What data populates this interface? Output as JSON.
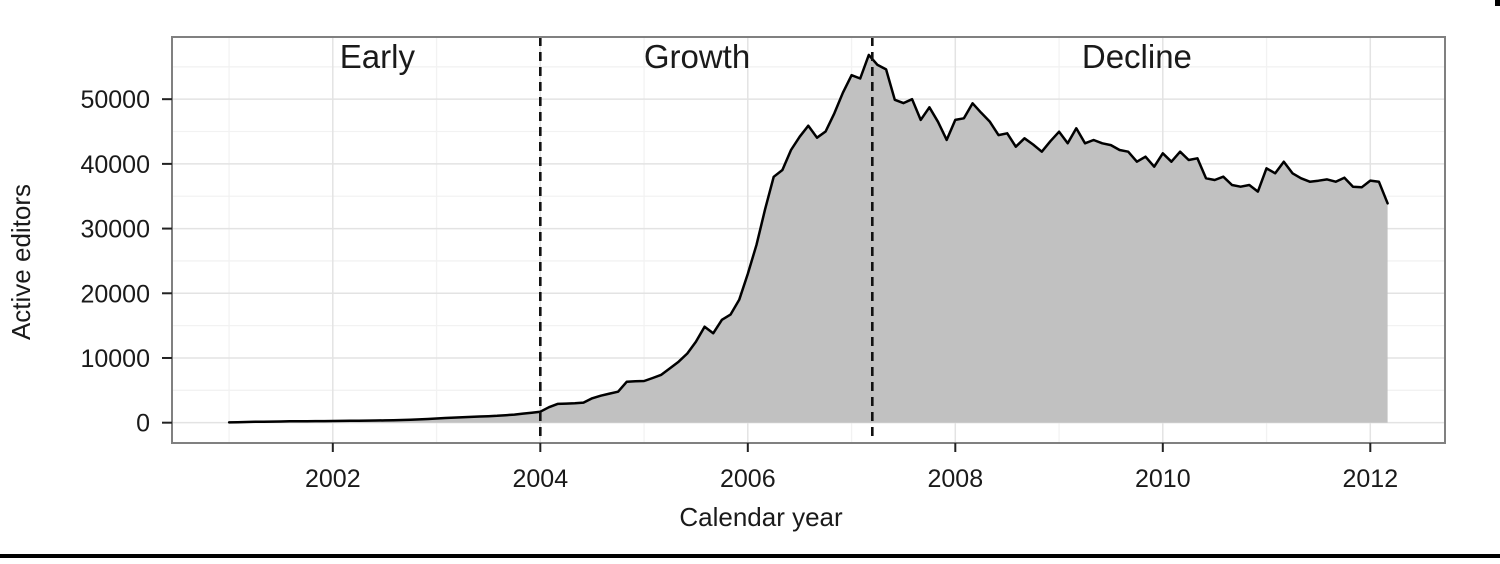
{
  "chart_data": {
    "type": "area",
    "title": "",
    "xlabel": "Calendar year",
    "ylabel": "Active editors",
    "x_ticks": [
      2002,
      2004,
      2006,
      2008,
      2010,
      2012
    ],
    "x_minor_ticks": [
      2001,
      2003,
      2005,
      2007,
      2009,
      2011
    ],
    "y_ticks": [
      0,
      10000,
      20000,
      30000,
      40000,
      50000
    ],
    "y_minor_ticks": [
      5000,
      15000,
      25000,
      35000,
      45000,
      55000
    ],
    "xlim": [
      2000.45,
      2012.72
    ],
    "ylim": [
      -3140,
      59610
    ],
    "grid": "major+minor light gray on white, full gray panel border",
    "legend": "none",
    "annotations": [
      {
        "label": "Early",
        "x": 2002.43
      },
      {
        "label": "Growth",
        "x": 2005.51
      },
      {
        "label": "Decline",
        "x": 2009.75
      }
    ],
    "phase_dividers_x": [
      2004.0,
      2007.2
    ],
    "colors": {
      "area_fill": "#c1c1c1",
      "line": "#000000",
      "dashed_divider": "#111111",
      "panel_border": "#808080",
      "grid_major": "#e3e3e3",
      "grid_minor": "#f2f2f2",
      "bottom_rule": "#000000"
    },
    "series": [
      {
        "name": "Active editors",
        "x_unit": "decimal year, monthly points Jan 2001 - Mar 2012",
        "x_start": 2001.0,
        "x_step": 0.083333,
        "y": [
          50,
          80,
          110,
          130,
          150,
          170,
          190,
          210,
          220,
          230,
          240,
          250,
          260,
          270,
          290,
          300,
          320,
          340,
          360,
          380,
          420,
          460,
          510,
          570,
          650,
          720,
          790,
          850,
          900,
          950,
          1000,
          1070,
          1150,
          1250,
          1400,
          1550,
          1700,
          2400,
          2900,
          2950,
          3000,
          3100,
          3770,
          4170,
          4500,
          4790,
          6340,
          6400,
          6450,
          6900,
          7400,
          8400,
          9430,
          10700,
          12500,
          14840,
          13820,
          15900,
          16700,
          19000,
          23000,
          27500,
          33000,
          38000,
          39050,
          42150,
          44200,
          45900,
          44050,
          45000,
          47800,
          51000,
          53700,
          53200,
          56840,
          55300,
          54600,
          49900,
          49400,
          50000,
          46800,
          48750,
          46500,
          43700,
          46800,
          47050,
          49370,
          47900,
          46500,
          44450,
          44730,
          42660,
          43950,
          43000,
          41890,
          43500,
          44980,
          43180,
          45500,
          43180,
          43690,
          43180,
          42900,
          42150,
          41890,
          40340,
          41110,
          39570,
          41630,
          40340,
          41890,
          40600,
          40860,
          37770,
          37510,
          38020,
          36740,
          36480,
          36740,
          35710,
          39310,
          38540,
          40340,
          38540,
          37770,
          37250,
          37400,
          37600,
          37250,
          37870,
          36480,
          36380,
          37410,
          37250,
          33900
        ]
      }
    ]
  }
}
